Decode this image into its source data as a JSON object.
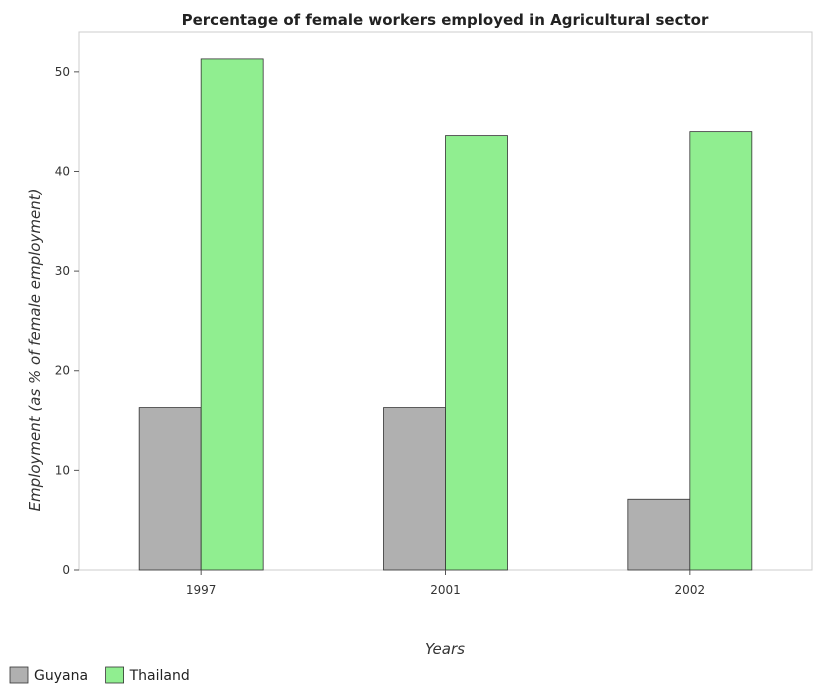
{
  "chart_data": {
    "type": "bar",
    "title": "Percentage of female workers employed in Agricultural sector",
    "xlabel": "Years",
    "ylabel": "Employment (as % of female employment)",
    "categories": [
      "1997",
      "2001",
      "2002"
    ],
    "series": [
      {
        "name": "Guyana",
        "values": [
          16.3,
          16.3,
          7.1
        ],
        "color": "#b0b0b0"
      },
      {
        "name": "Thailand",
        "values": [
          51.3,
          43.6,
          44.0
        ],
        "color": "#90ee90"
      }
    ],
    "ylim": [
      0,
      54
    ],
    "yticks": [
      0,
      10,
      20,
      30,
      40,
      50
    ],
    "grid": false,
    "legend_position": "bottom-left"
  }
}
